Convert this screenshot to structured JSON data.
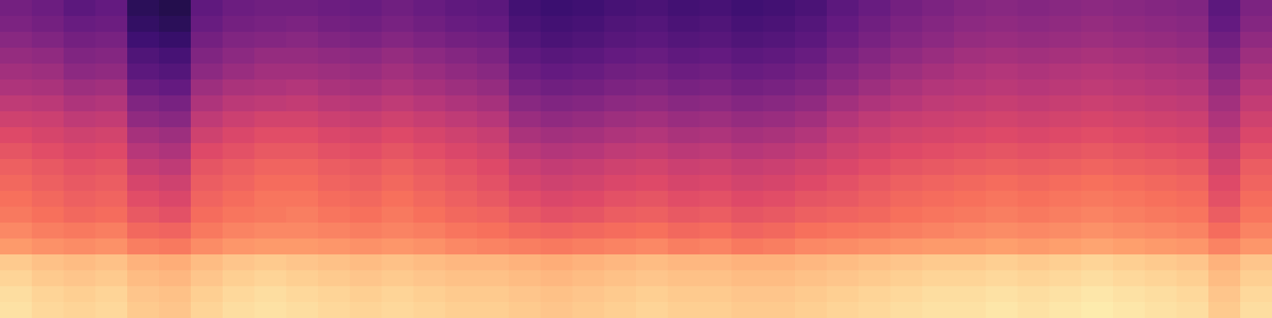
{
  "chart_data": {
    "type": "heatmap",
    "color": "magma",
    "tick_labels": false,
    "zlim": [
      0,
      100
    ],
    "cells": [
      [
        94,
        92,
        91,
        92,
        89,
        88,
        91,
        93,
        94,
        93,
        92,
        91,
        92,
        91,
        90,
        90,
        89,
        88,
        89,
        90,
        91,
        90,
        90,
        89,
        89,
        90,
        91,
        92,
        93,
        94,
        94,
        95,
        94,
        95,
        96,
        95,
        94,
        93,
        89,
        93
      ],
      [
        93,
        91,
        90,
        91,
        88,
        87,
        90,
        92,
        93,
        92,
        91,
        90,
        91,
        90,
        89,
        89,
        88,
        87,
        88,
        89,
        90,
        89,
        89,
        88,
        88,
        89,
        90,
        91,
        92,
        93,
        93,
        94,
        93,
        94,
        95,
        94,
        93,
        92,
        88,
        92
      ],
      [
        91,
        89,
        88,
        89,
        86,
        85,
        88,
        90,
        91,
        90,
        89,
        88,
        89,
        88,
        87,
        87,
        86,
        85,
        86,
        87,
        88,
        87,
        87,
        86,
        86,
        87,
        88,
        89,
        90,
        91,
        91,
        92,
        91,
        92,
        93,
        92,
        91,
        90,
        86,
        90
      ],
      [
        89,
        87,
        86,
        87,
        84,
        83,
        86,
        88,
        89,
        88,
        87,
        86,
        87,
        86,
        85,
        85,
        84,
        83,
        84,
        85,
        86,
        85,
        85,
        84,
        84,
        85,
        86,
        87,
        88,
        89,
        89,
        90,
        89,
        90,
        91,
        90,
        89,
        88,
        84,
        88
      ],
      [
        79,
        77,
        76,
        77,
        73,
        72,
        76,
        78,
        79,
        79,
        78,
        77,
        78,
        77,
        75,
        74,
        73,
        72,
        73,
        74,
        75,
        73,
        74,
        72,
        73,
        75,
        76,
        77,
        78,
        79,
        79,
        80,
        79,
        80,
        81,
        80,
        79,
        78,
        74,
        78
      ],
      [
        75,
        73,
        72,
        73,
        68,
        67,
        72,
        74,
        75,
        75,
        74,
        73,
        74,
        73,
        71,
        70,
        68,
        67,
        68,
        69,
        70,
        68,
        69,
        67,
        68,
        70,
        71,
        72,
        73,
        74,
        75,
        76,
        75,
        76,
        77,
        76,
        75,
        74,
        69,
        74
      ],
      [
        72,
        70,
        68,
        69,
        64,
        62,
        69,
        71,
        72,
        73,
        71,
        70,
        72,
        70,
        68,
        67,
        64,
        62,
        63,
        65,
        66,
        64,
        65,
        63,
        64,
        66,
        67,
        68,
        70,
        71,
        72,
        73,
        72,
        73,
        74,
        73,
        72,
        71,
        65,
        71
      ],
      [
        70,
        68,
        66,
        67,
        61,
        59,
        67,
        69,
        71,
        71,
        69,
        68,
        70,
        68,
        66,
        64,
        61,
        59,
        60,
        62,
        63,
        61,
        62,
        60,
        61,
        63,
        64,
        66,
        68,
        69,
        70,
        71,
        70,
        71,
        72,
        71,
        70,
        69,
        62,
        69
      ],
      [
        68,
        66,
        64,
        65,
        58,
        56,
        65,
        67,
        69,
        69,
        67,
        66,
        68,
        66,
        64,
        62,
        58,
        56,
        57,
        59,
        60,
        58,
        59,
        57,
        58,
        60,
        62,
        64,
        66,
        67,
        68,
        69,
        68,
        69,
        70,
        69,
        68,
        67,
        60,
        67
      ],
      [
        66,
        64,
        62,
        63,
        54,
        52,
        63,
        65,
        67,
        67,
        65,
        64,
        66,
        64,
        62,
        60,
        55,
        53,
        54,
        56,
        57,
        55,
        56,
        54,
        55,
        57,
        59,
        61,
        63,
        64,
        65,
        66,
        65,
        66,
        67,
        66,
        65,
        64,
        57,
        65
      ],
      [
        63,
        61,
        59,
        60,
        50,
        48,
        60,
        62,
        64,
        64,
        62,
        61,
        63,
        61,
        59,
        57,
        51,
        49,
        50,
        52,
        53,
        51,
        52,
        50,
        51,
        53,
        56,
        58,
        60,
        61,
        62,
        63,
        62,
        63,
        64,
        63,
        62,
        61,
        54,
        62
      ],
      [
        60,
        58,
        56,
        57,
        46,
        44,
        56,
        59,
        61,
        61,
        59,
        58,
        60,
        58,
        56,
        54,
        47,
        45,
        46,
        48,
        49,
        47,
        48,
        46,
        47,
        49,
        53,
        55,
        57,
        58,
        59,
        60,
        59,
        60,
        61,
        60,
        59,
        58,
        51,
        59
      ],
      [
        56,
        55,
        52,
        53,
        41,
        39,
        52,
        55,
        57,
        57,
        55,
        54,
        56,
        54,
        52,
        50,
        43,
        41,
        42,
        44,
        45,
        43,
        44,
        42,
        43,
        45,
        49,
        52,
        54,
        55,
        56,
        57,
        56,
        57,
        58,
        57,
        56,
        55,
        48,
        56
      ],
      [
        52,
        51,
        48,
        49,
        37,
        35,
        48,
        51,
        52,
        53,
        51,
        50,
        52,
        50,
        48,
        46,
        39,
        37,
        38,
        40,
        41,
        39,
        40,
        38,
        39,
        41,
        45,
        48,
        50,
        52,
        53,
        54,
        53,
        54,
        55,
        54,
        53,
        52,
        45,
        53
      ],
      [
        48,
        47,
        44,
        45,
        32,
        30,
        44,
        47,
        48,
        49,
        47,
        46,
        48,
        46,
        44,
        42,
        35,
        33,
        34,
        36,
        37,
        35,
        36,
        34,
        35,
        37,
        41,
        44,
        47,
        49,
        50,
        51,
        50,
        51,
        52,
        51,
        50,
        49,
        42,
        50
      ],
      [
        45,
        44,
        40,
        41,
        28,
        26,
        40,
        43,
        45,
        45,
        44,
        43,
        45,
        43,
        41,
        39,
        32,
        30,
        31,
        33,
        34,
        32,
        33,
        31,
        32,
        34,
        38,
        41,
        44,
        46,
        48,
        49,
        48,
        49,
        50,
        49,
        48,
        47,
        39,
        47
      ],
      [
        42,
        41,
        37,
        38,
        25,
        23,
        37,
        40,
        42,
        42,
        41,
        40,
        42,
        40,
        38,
        36,
        29,
        27,
        28,
        30,
        31,
        29,
        30,
        28,
        29,
        31,
        35,
        38,
        41,
        43,
        45,
        46,
        45,
        46,
        47,
        46,
        45,
        44,
        36,
        44
      ],
      [
        39,
        37,
        34,
        35,
        21,
        19,
        34,
        37,
        38,
        39,
        37,
        36,
        38,
        36,
        34,
        33,
        26,
        24,
        25,
        27,
        28,
        26,
        27,
        25,
        26,
        28,
        32,
        35,
        38,
        40,
        42,
        43,
        42,
        43,
        44,
        43,
        42,
        41,
        33,
        41
      ],
      [
        36,
        34,
        31,
        32,
        18,
        16,
        31,
        34,
        35,
        36,
        34,
        33,
        35,
        33,
        31,
        30,
        24,
        22,
        23,
        25,
        26,
        24,
        25,
        23,
        24,
        26,
        30,
        33,
        36,
        38,
        40,
        41,
        40,
        41,
        42,
        41,
        40,
        39,
        30,
        38
      ],
      [
        34,
        32,
        28,
        30,
        16,
        14,
        29,
        32,
        33,
        33,
        32,
        31,
        33,
        31,
        29,
        28,
        22,
        20,
        21,
        23,
        24,
        22,
        23,
        21,
        22,
        24,
        28,
        31,
        34,
        36,
        38,
        39,
        38,
        39,
        40,
        39,
        38,
        37,
        28,
        36
      ]
    ]
  }
}
